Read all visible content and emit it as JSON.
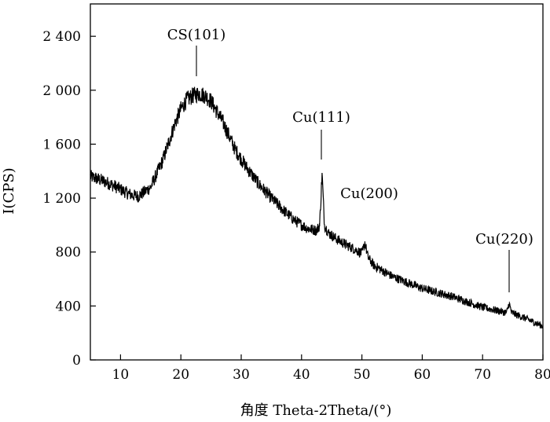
{
  "chart_data": {
    "type": "line",
    "title": "",
    "xlabel": "角度 Theta-2Theta/(°)",
    "ylabel": "I(CPS)",
    "xlim": [
      5,
      80
    ],
    "ylim": [
      0,
      2640
    ],
    "xticks": [
      {
        "value": 10,
        "label": "10"
      },
      {
        "value": 20,
        "label": "20"
      },
      {
        "value": 30,
        "label": "30"
      },
      {
        "value": 40,
        "label": "40"
      },
      {
        "value": 50,
        "label": "50"
      },
      {
        "value": 60,
        "label": "60"
      },
      {
        "value": 70,
        "label": "70"
      },
      {
        "value": 80,
        "label": "80"
      }
    ],
    "yticks": [
      {
        "value": 0,
        "label": "0"
      },
      {
        "value": 400,
        "label": "400"
      },
      {
        "value": 800,
        "label": "800"
      },
      {
        "value": 1200,
        "label": "1 200"
      },
      {
        "value": 1600,
        "label": "1 600"
      },
      {
        "value": 2000,
        "label": "2 000"
      },
      {
        "value": 2400,
        "label": "2 400"
      }
    ],
    "grid": false,
    "legend": "none",
    "series": [
      {
        "color": "#000000",
        "x": [
          5,
          7,
          9,
          11,
          12,
          13,
          15,
          17,
          19,
          20,
          21,
          22,
          23,
          24,
          25,
          27,
          29,
          31,
          33,
          35,
          37,
          39,
          41,
          42.5,
          43,
          43.4,
          43.8,
          44.5,
          46,
          48,
          50,
          50.5,
          51,
          52,
          55,
          60,
          65,
          70,
          73,
          74,
          74.4,
          74.8,
          77,
          80
        ],
        "y": [
          1360,
          1330,
          1290,
          1240,
          1220,
          1215,
          1280,
          1480,
          1750,
          1860,
          1930,
          1960,
          1975,
          1960,
          1920,
          1760,
          1560,
          1420,
          1300,
          1200,
          1110,
          1030,
          975,
          960,
          1000,
          1380,
          1000,
          940,
          890,
          840,
          790,
          870,
          760,
          700,
          620,
          530,
          470,
          390,
          360,
          350,
          420,
          350,
          310,
          250
        ]
      }
    ],
    "annotations": [
      {
        "label": "CS(101)",
        "x": 23
      },
      {
        "label": "Cu(111)",
        "x": 43.4
      },
      {
        "label": "Cu(200)",
        "x": 50.5
      },
      {
        "label": "Cu(220)",
        "x": 74.4
      }
    ]
  }
}
